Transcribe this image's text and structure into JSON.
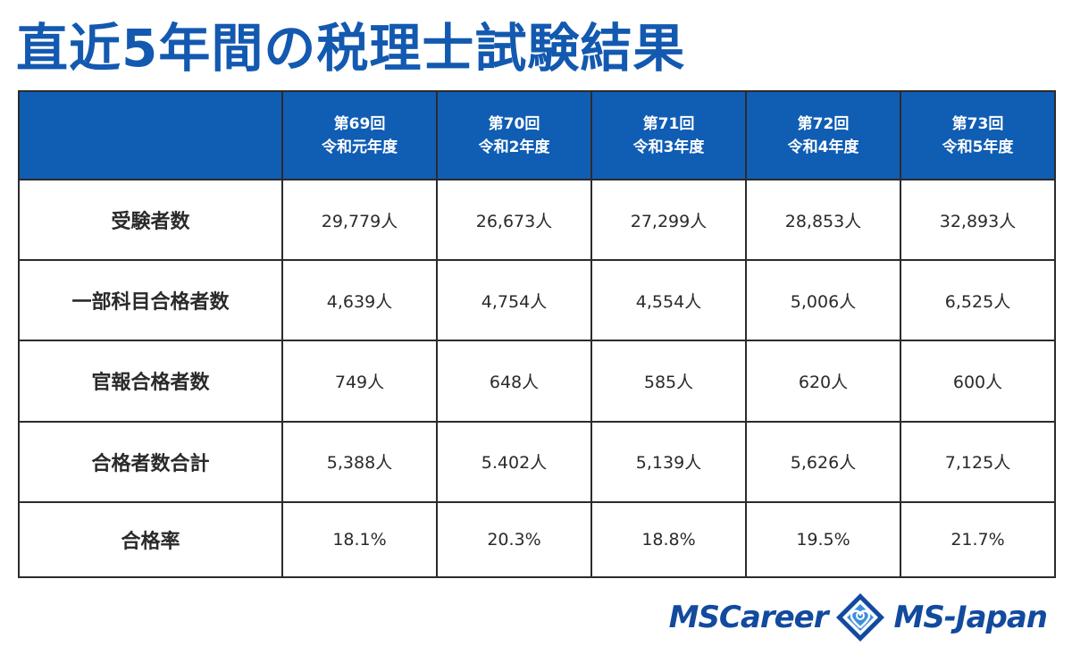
{
  "title": "直近5年間の税理士試験結果",
  "table": {
    "columns": [
      {
        "round": "第69回",
        "year": "令和元年度"
      },
      {
        "round": "第70回",
        "year": "令和2年度"
      },
      {
        "round": "第71回",
        "year": "令和3年度"
      },
      {
        "round": "第72回",
        "year": "令和4年度"
      },
      {
        "round": "第73回",
        "year": "令和5年度"
      }
    ],
    "rows": [
      {
        "label": "受験者数",
        "values": [
          "29,779人",
          "26,673人",
          "27,299人",
          "28,853人",
          "32,893人"
        ]
      },
      {
        "label": "一部科目合格者数",
        "values": [
          "4,639人",
          "4,754人",
          "4,554人",
          "5,006人",
          "6,525人"
        ]
      },
      {
        "label": "官報合格者数",
        "values": [
          "749人",
          "648人",
          "585人",
          "620人",
          "600人"
        ]
      },
      {
        "label": "合格者数合計",
        "values": [
          "5,388人",
          "5.402人",
          "5,139人",
          "5,626人",
          "7,125人"
        ]
      },
      {
        "label": "合格率",
        "values": [
          "18.1%",
          "20.3%",
          "18.8%",
          "19.5%",
          "21.7%"
        ]
      }
    ]
  },
  "logos": {
    "left": "MSCareer",
    "right": "MS-Japan"
  },
  "colors": {
    "title": "#1359b0",
    "header_bg": "#105db4",
    "logo": "#124a9e"
  }
}
